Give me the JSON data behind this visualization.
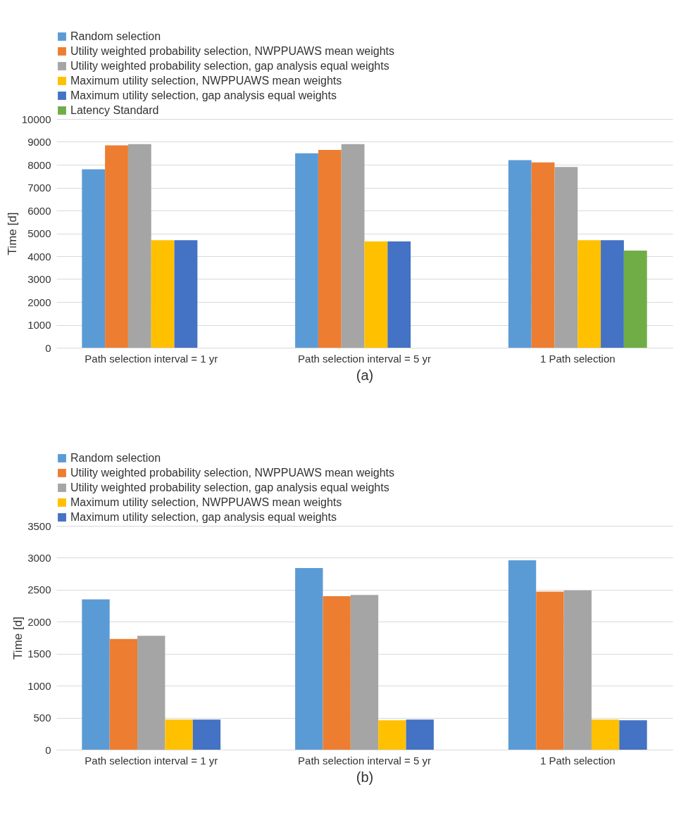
{
  "chart_data": [
    {
      "type": "bar",
      "xlabel": "(a)",
      "ylabel": "Time [d]",
      "categories": [
        "Path selection interval = 1 yr",
        "Path selection interval = 5 yr",
        "1 Path selection"
      ],
      "series": [
        {
          "name": "Random selection",
          "color": "#5b9bd5",
          "values": [
            7800,
            8500,
            8200
          ]
        },
        {
          "name": "Utility weighted probability selection, NWPPUAWS mean weights",
          "color": "#ed7d31",
          "values": [
            8850,
            8650,
            8100
          ]
        },
        {
          "name": "Utility weighted probability selection, gap analysis equal weights",
          "color": "#a5a5a5",
          "values": [
            8900,
            8900,
            7900
          ]
        },
        {
          "name": "Maximum utility selection, NWPPUAWS mean weights",
          "color": "#ffc000",
          "values": [
            4700,
            4650,
            4700
          ]
        },
        {
          "name": "Maximum utility selection, gap analysis equal weights",
          "color": "#4472c4",
          "values": [
            4700,
            4650,
            4700
          ]
        },
        {
          "name": "Latency Standard",
          "color": "#70ad47",
          "values": [
            null,
            null,
            4250
          ]
        }
      ],
      "ylim": [
        0,
        10000
      ],
      "yticks": [
        0,
        1000,
        2000,
        3000,
        4000,
        5000,
        6000,
        7000,
        8000,
        9000,
        10000
      ],
      "grid": "y",
      "legend": "top"
    },
    {
      "type": "bar",
      "xlabel": "(b)",
      "ylabel": "Time [d]",
      "categories": [
        "Path selection interval = 1 yr",
        "Path selection interval = 5 yr",
        "1 Path selection"
      ],
      "series": [
        {
          "name": "Random selection",
          "color": "#5b9bd5",
          "values": [
            2350,
            2840,
            2960
          ]
        },
        {
          "name": "Utility weighted probability selection, NWPPUAWS mean weights",
          "color": "#ed7d31",
          "values": [
            1730,
            2400,
            2470
          ]
        },
        {
          "name": "Utility weighted probability selection, gap analysis equal weights",
          "color": "#a5a5a5",
          "values": [
            1780,
            2420,
            2490
          ]
        },
        {
          "name": "Maximum utility selection, NWPPUAWS mean weights",
          "color": "#ffc000",
          "values": [
            470,
            460,
            470
          ]
        },
        {
          "name": "Maximum utility selection, gap analysis equal weights",
          "color": "#4472c4",
          "values": [
            470,
            470,
            460
          ]
        }
      ],
      "ylim": [
        0,
        3500
      ],
      "yticks": [
        0,
        500,
        1000,
        1500,
        2000,
        2500,
        3000,
        3500
      ],
      "grid": "y",
      "legend": "top"
    }
  ]
}
